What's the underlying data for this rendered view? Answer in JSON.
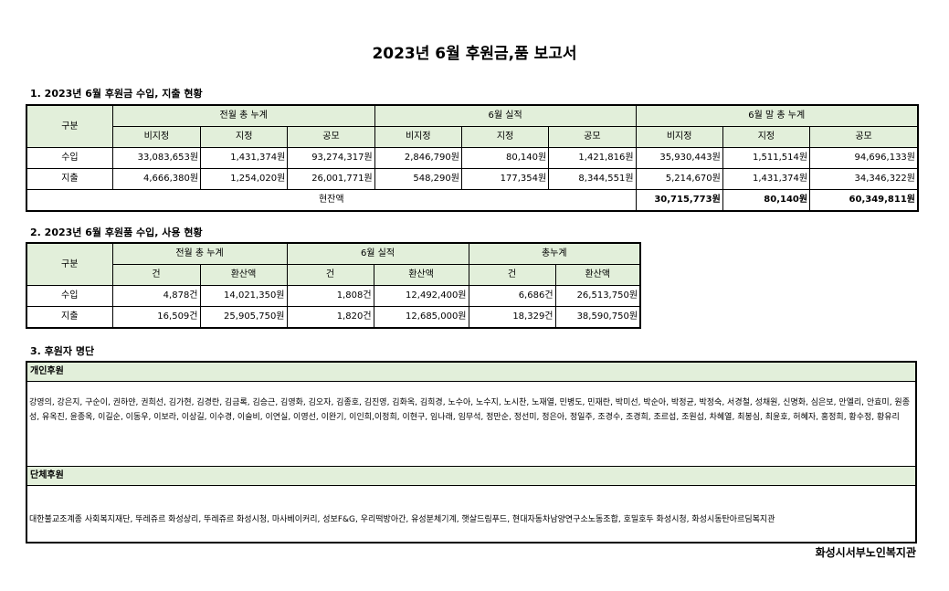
{
  "title": "2023년 6월 후원금,품 보고서",
  "section1": {
    "heading": "1. 2023년 6월 후원금 수입, 지출 현황",
    "col_label": "구분",
    "groups": [
      "전월 총 누계",
      "6월 실적",
      "6월 말 총 누계"
    ],
    "subheads": [
      "비지정",
      "지정",
      "공모",
      "비지정",
      "지정",
      "공모",
      "비지정",
      "지정",
      "공모"
    ],
    "rows": [
      {
        "label": "수입",
        "values": [
          "33,083,653원",
          "1,431,374원",
          "93,274,317원",
          "2,846,790원",
          "80,140원",
          "1,421,816원",
          "35,930,443원",
          "1,511,514원",
          "94,696,133원"
        ]
      },
      {
        "label": "지출",
        "values": [
          "4,666,380원",
          "1,254,020원",
          "26,001,771원",
          "548,290원",
          "177,354원",
          "8,344,551원",
          "5,214,670원",
          "1,431,374원",
          "34,346,322원"
        ]
      }
    ],
    "balance_label": "현잔액",
    "balance_values": [
      "30,715,773원",
      "80,140원",
      "60,349,811원"
    ]
  },
  "section2": {
    "heading": "2. 2023년 6월 후원품 수입, 사용 현황",
    "col_label": "구분",
    "groups": [
      "전월 총 누계",
      "6월 실적",
      "총누계"
    ],
    "subheads": [
      "건",
      "환산액",
      "건",
      "환산액",
      "건",
      "환산액"
    ],
    "rows": [
      {
        "label": "수입",
        "values": [
          "4,878건",
          "14,021,350원",
          "1,808건",
          "12,492,400원",
          "6,686건",
          "26,513,750원"
        ]
      },
      {
        "label": "지출",
        "values": [
          "16,509건",
          "25,905,750원",
          "1,820건",
          "12,685,000원",
          "18,329건",
          "38,590,750원"
        ]
      }
    ]
  },
  "section3": {
    "heading": "3. 후원자 명단",
    "individual_label": "개인후원",
    "individual_names": "강영의, 강은지, 구순이, 권하얀, 권희선, 김가현, 김경란, 김금록, 김승근, 김영화, 김오자, 김종호, 김진영, 김화옥, 김희경, 노수아, 노수지, 노시찬, 노재열, 민병도, 민재란, 박미선, 박순아, 박정균, 박정숙, 서경철, 성채원, 신명화, 심은보, 안엘리, 안효미, 원종성, 유옥진, 윤종옥, 이길순, 이동우, 이보라, 이상길, 이수경, 이슬비, 이연실, 이영선, 이완기, 이인희,이정희, 이현구, 임나래, 임무석, 정만순, 정선미, 정은아, 정일주, 조경수, 조경희, 조르섭, 조원섭, 차혜열, 최봉심, 최윤호, 허혜자, 홍정희, 황수정, 황유리",
    "group_label": "단체후원",
    "group_names": "대한불교조계종 사회복지재단, 뚜레쥬르  화성상리, 뚜레쥬르 화성시청, 마사베이커리,  성보F&G, 우리떡방아간, 유성분체기계, 햇살드림푸드, 현대자동차남양연구소노동조합, 호밀호두 화성시청, 화성시동탄아르딤복지관"
  },
  "footer": "화성시서부노인복지관"
}
